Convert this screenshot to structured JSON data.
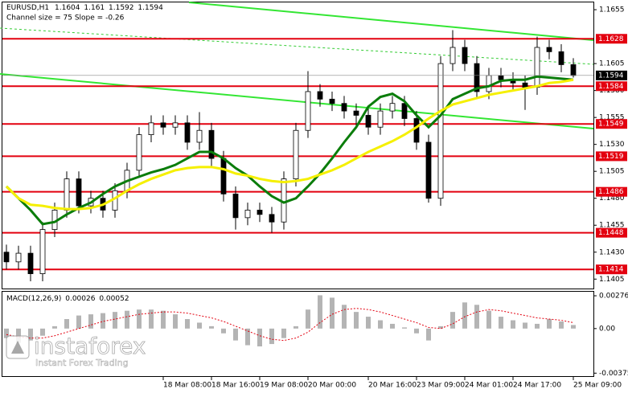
{
  "chart_data": [
    {
      "type": "candlestick",
      "title": "EURUSD,H1",
      "subtitle": "Channel size = 75 Slope = -0.26",
      "categories": [
        null,
        null,
        null,
        null,
        null,
        null,
        null,
        null,
        null,
        null,
        null,
        null,
        null,
        "18 Mar 08:00",
        null,
        null,
        null,
        "18 Mar 16:00",
        null,
        null,
        null,
        "19 Mar 08:00",
        null,
        null,
        null,
        "20 Mar 00:00",
        null,
        null,
        null,
        null,
        "20 Mar 16:00",
        null,
        null,
        null,
        "23 Mar 09:00",
        null,
        null,
        null,
        "24 Mar 01:00",
        null,
        null,
        null,
        "24 Mar 17:00",
        null,
        null,
        null,
        null,
        "25 Mar 09:00"
      ],
      "open": [
        1.143,
        1.1421,
        1.1429,
        1.141,
        1.1451,
        1.1469,
        1.1498,
        1.1473,
        1.148,
        1.1469,
        1.1487,
        1.1506,
        1.1539,
        1.155,
        1.1546,
        1.155,
        1.1532,
        1.1543,
        1.1517,
        1.1484,
        1.1462,
        1.1469,
        1.1465,
        1.1458,
        1.1498,
        1.1543,
        1.1579,
        1.1572,
        1.1568,
        1.1561,
        1.1557,
        1.1546,
        1.1561,
        1.1568,
        1.1554,
        1.1532,
        1.148,
        1.1605,
        1.162,
        1.1605,
        1.1579,
        1.1594,
        1.159,
        1.1587,
        1.1583,
        1.162,
        1.1616,
        1.1604
      ],
      "high": [
        1.1437,
        1.1436,
        1.1436,
        1.1458,
        1.1476,
        1.1505,
        1.1505,
        1.1487,
        1.1487,
        1.1494,
        1.1513,
        1.1546,
        1.1557,
        1.1557,
        1.1557,
        1.1557,
        1.156,
        1.155,
        1.1524,
        1.1491,
        1.1476,
        1.1476,
        1.1472,
        1.1505,
        1.155,
        1.1598,
        1.1586,
        1.1579,
        1.1575,
        1.1568,
        1.1564,
        1.1568,
        1.1575,
        1.1575,
        1.1561,
        1.1539,
        1.1612,
        1.1636,
        1.1627,
        1.1612,
        1.1601,
        1.1601,
        1.1597,
        1.1594,
        1.163,
        1.1627,
        1.1623,
        1.161
      ],
      "low": [
        1.1414,
        1.1414,
        1.1403,
        1.1403,
        1.1444,
        1.1462,
        1.1466,
        1.1466,
        1.1462,
        1.1462,
        1.148,
        1.1499,
        1.1532,
        1.1539,
        1.1539,
        1.1525,
        1.1525,
        1.151,
        1.1477,
        1.1451,
        1.1455,
        1.1458,
        1.1448,
        1.1451,
        1.1491,
        1.1536,
        1.1565,
        1.1561,
        1.1554,
        1.1546,
        1.1539,
        1.1539,
        1.1554,
        1.1547,
        1.1525,
        1.1476,
        1.1473,
        1.1598,
        1.1598,
        1.1572,
        1.1572,
        1.1583,
        1.158,
        1.1562,
        1.1576,
        1.1609,
        1.1597,
        1.1592
      ],
      "close": [
        1.1421,
        1.1429,
        1.141,
        1.1451,
        1.1469,
        1.1498,
        1.1473,
        1.148,
        1.1469,
        1.1487,
        1.1506,
        1.1539,
        1.155,
        1.1546,
        1.155,
        1.1532,
        1.1543,
        1.1517,
        1.1484,
        1.1462,
        1.1469,
        1.1465,
        1.1458,
        1.1498,
        1.1543,
        1.1579,
        1.1572,
        1.1568,
        1.1561,
        1.1557,
        1.1546,
        1.1561,
        1.1568,
        1.1554,
        1.1532,
        1.148,
        1.1605,
        1.162,
        1.1605,
        1.1579,
        1.1594,
        1.159,
        1.1587,
        1.1583,
        1.162,
        1.1616,
        1.1604,
        1.1594
      ],
      "series": [
        {
          "color": "#0b7d0b",
          "values": [
            1.1491,
            1.148,
            1.1469,
            1.1456,
            1.1458,
            1.1465,
            1.1471,
            1.1476,
            1.1484,
            1.1491,
            1.1496,
            1.15,
            1.1504,
            1.1507,
            1.1511,
            1.1517,
            1.1523,
            1.1523,
            1.1517,
            1.1508,
            1.1501,
            1.1491,
            1.1482,
            1.1476,
            1.148,
            1.1491,
            1.1503,
            1.1517,
            1.1532,
            1.1546,
            1.1565,
            1.1574,
            1.1577,
            1.157,
            1.1557,
            1.1546,
            1.1557,
            1.1572,
            1.1577,
            1.1582,
            1.1584,
            1.1589,
            1.159,
            1.159,
            1.1593,
            1.1592,
            1.1591,
            1.159
          ]
        },
        {
          "color": "#f5f000",
          "values": [
            1.1491,
            1.148,
            1.1474,
            1.1473,
            1.1471,
            1.147,
            1.147,
            1.1471,
            1.1474,
            1.148,
            1.1487,
            1.1493,
            1.1498,
            1.1502,
            1.1506,
            1.1508,
            1.1509,
            1.1509,
            1.1507,
            1.1503,
            1.1501,
            1.1498,
            1.1496,
            1.1495,
            1.1496,
            1.1498,
            1.1502,
            1.1506,
            1.1511,
            1.1517,
            1.1523,
            1.1528,
            1.1533,
            1.1539,
            1.1546,
            1.1554,
            1.1561,
            1.1567,
            1.157,
            1.1573,
            1.1576,
            1.1578,
            1.158,
            1.1582,
            1.1584,
            1.1587,
            1.1588,
            1.159
          ]
        }
      ],
      "ylim": [
        1.1397,
        1.1664
      ],
      "yticks": [
        1.1655,
        1.1605,
        {
          "value": 1.158,
          "label": "1.1580"
        },
        1.1555,
        {
          "value": 1.153,
          "label": "1.1530"
        },
        1.1505,
        {
          "value": 1.148,
          "label": "1.1480"
        },
        1.1455,
        {
          "value": 1.143,
          "label": "1.1430"
        },
        1.1405
      ],
      "levels": [
        1.1628,
        1.1584,
        1.1549,
        1.1519,
        1.1486,
        1.1448,
        1.1414
      ],
      "levels_color": "#e3000f",
      "last_price": 1.1594
    },
    {
      "type": "macd",
      "title": "MACD(12,26,9)",
      "main_value": 0.00026,
      "signal_value": 0.00052,
      "histogram": [
        -0.0008,
        -0.0012,
        -0.001,
        -0.0006,
        0.0002,
        0.0008,
        0.0011,
        0.0012,
        0.0013,
        0.0014,
        0.0015,
        0.0016,
        0.0016,
        0.0015,
        0.0012,
        0.0008,
        0.0005,
        0.0002,
        -0.0004,
        -0.001,
        -0.0014,
        -0.0015,
        -0.0013,
        -0.0008,
        0.0002,
        0.0016,
        0.0028,
        0.0026,
        0.002,
        0.0014,
        0.001,
        0.0007,
        0.0004,
        0.0001,
        -0.0004,
        -0.001,
        0.0002,
        0.0014,
        0.0022,
        0.002,
        0.0015,
        0.001,
        0.0007,
        0.0005,
        0.0004,
        0.0008,
        0.0006,
        0.0003
      ],
      "signal": [
        -0.0005,
        -0.0007,
        -0.0008,
        -0.0008,
        -0.0006,
        -0.0003,
        0.0,
        0.0003,
        0.0006,
        0.0008,
        0.001,
        0.0012,
        0.0013,
        0.0014,
        0.0014,
        0.0013,
        0.0011,
        0.0009,
        0.0006,
        0.0002,
        -0.0002,
        -0.0006,
        -0.0009,
        -0.001,
        -0.0008,
        -0.0003,
        0.0005,
        0.0012,
        0.0016,
        0.0017,
        0.0016,
        0.0014,
        0.0011,
        0.0008,
        0.0005,
        0.0001,
        0.0,
        0.0004,
        0.001,
        0.0014,
        0.0016,
        0.0015,
        0.0013,
        0.0011,
        0.0009,
        0.0008,
        0.0007,
        0.0005
      ],
      "histogram_color": "#b4b4b4",
      "signal_color": "#e3000f",
      "ylim": [
        -0.004,
        0.0031
      ],
      "yticks": [
        0.00276,
        {
          "value": 0,
          "label": "0.00"
        },
        -0.00375
      ]
    }
  ],
  "watermark": {
    "brand": "instaforex",
    "tagline": "Instant Forex Trading"
  }
}
